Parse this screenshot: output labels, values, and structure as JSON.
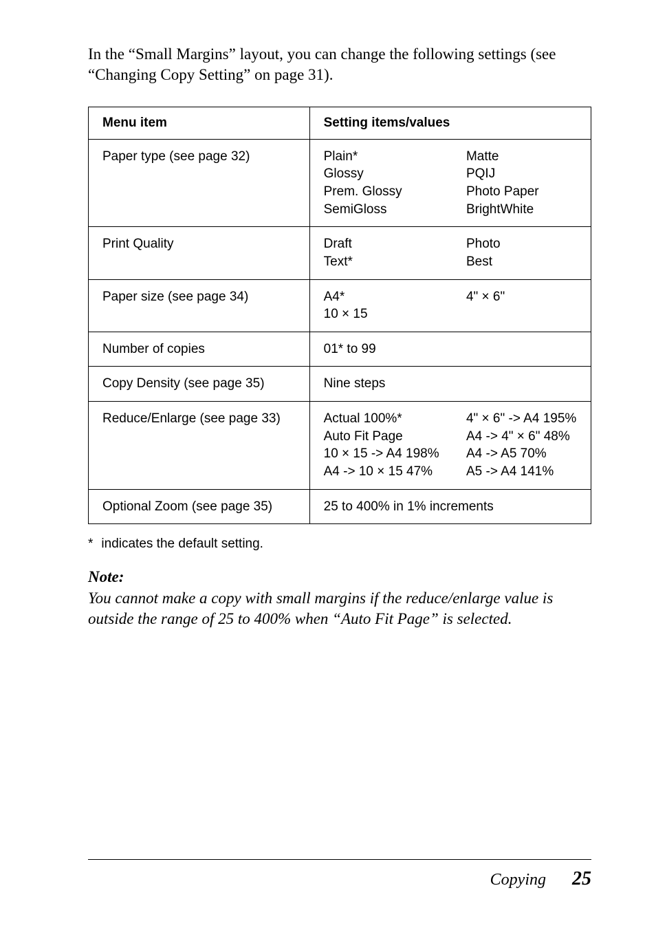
{
  "intro_text": "In the “Small Margins” layout, you can change the following settings (see “Changing Copy Setting” on page 31).",
  "table": {
    "header": {
      "menu": "Menu item",
      "settings": "Setting items/values"
    },
    "rows": [
      {
        "menu": "Paper type (see page 32)",
        "col1": "Plain*\nGlossy\nPrem. Glossy\nSemiGloss",
        "col2": "Matte\nPQIJ\nPhoto Paper\nBrightWhite"
      },
      {
        "menu": "Print Quality",
        "col1": "Draft\nText*",
        "col2": "Photo\nBest"
      },
      {
        "menu": "Paper size (see page 34)",
        "col1": "A4*\n10 × 15",
        "col2": "4\" × 6\""
      },
      {
        "menu": "Number of copies",
        "span": "01* to 99"
      },
      {
        "menu": "Copy Density (see page 35)",
        "span": "Nine steps"
      },
      {
        "menu": "Reduce/Enlarge (see page 33)",
        "col1": "Actual 100%*\nAuto Fit Page\n10 × 15 -> A4 198%\nA4 -> 10 × 15 47%",
        "col2": "4\" × 6\" -> A4 195%\nA4 -> 4\" × 6\" 48%\nA4 -> A5 70%\nA5 -> A4 141%"
      },
      {
        "menu": "Optional Zoom (see page 35)",
        "span": "25 to 400% in 1% increments"
      }
    ]
  },
  "footnote": {
    "marker": "*",
    "text": "indicates the default setting."
  },
  "note": {
    "label": "Note:",
    "body": "You cannot make a copy with small margins if the reduce/enlarge value is outside the range of 25 to 400% when “Auto Fit Page” is selected."
  },
  "footer": {
    "title": "Copying",
    "page": "25"
  }
}
